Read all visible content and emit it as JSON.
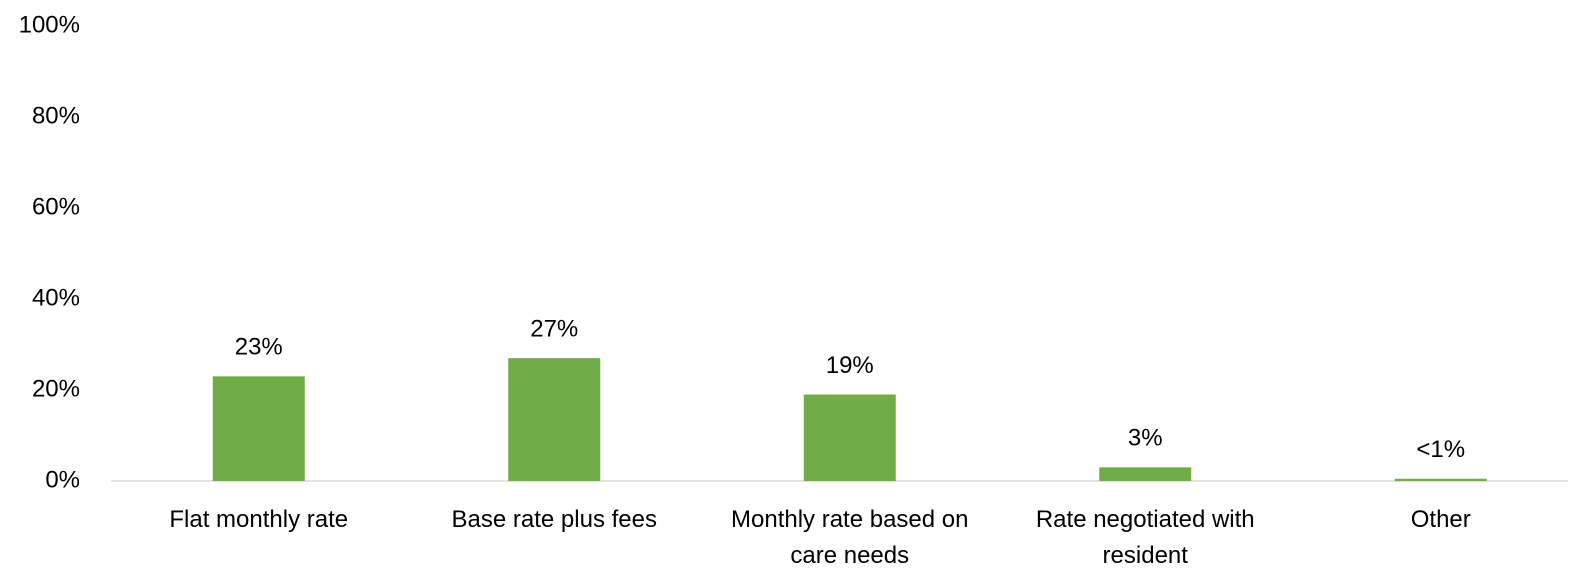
{
  "chart_data": {
    "type": "bar",
    "categories": [
      "Flat monthly rate",
      "Base rate plus fees",
      "Monthly rate based on care needs",
      "Rate negotiated with resident",
      "Other"
    ],
    "values": [
      23,
      27,
      19,
      3,
      0.5
    ],
    "value_labels": [
      "23%",
      "27%",
      "19%",
      "3%",
      "<1%"
    ],
    "color": "#70ad47",
    "ylim": [
      0,
      100
    ],
    "yticks": [
      {
        "value": 0,
        "label": "0%"
      },
      {
        "value": 20,
        "label": "20%"
      },
      {
        "value": 40,
        "label": "40%"
      },
      {
        "value": 60,
        "label": "60%"
      },
      {
        "value": 80,
        "label": "80%"
      },
      {
        "value": 100,
        "label": "100%"
      }
    ],
    "grid": false
  }
}
